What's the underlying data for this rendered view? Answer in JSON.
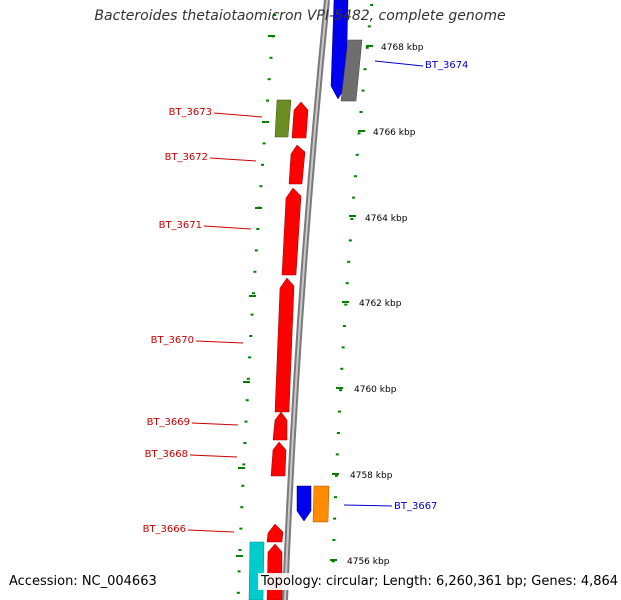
{
  "title": "Bacteroides thetaiotaomicron VPI-5482, complete genome",
  "footer": {
    "accession": "Accession: NC_004663",
    "topology": "Topology: circular; Length: 6,260,361 bp; Genes: 4,864"
  },
  "colors": {
    "red": "#ff0000",
    "blue": "#0000ee",
    "olive": "#6b8e23",
    "gray": "#6e6e6e",
    "orange": "#ff8c00",
    "cyan": "#00cccc",
    "tick": "#008000",
    "label_red": "#cc0000",
    "label_blue": "#0000cc"
  },
  "axis_labels": [
    "4768 kbp",
    "4766 kbp",
    "4764 kbp",
    "4762 kbp",
    "4760 kbp",
    "4758 kbp",
    "4756 kbp"
  ],
  "gene_labels": [
    {
      "name": "BT_3674",
      "color": "blue"
    },
    {
      "name": "BT_3673",
      "color": "red"
    },
    {
      "name": "BT_3672",
      "color": "red"
    },
    {
      "name": "BT_3671",
      "color": "red"
    },
    {
      "name": "BT_3670",
      "color": "red"
    },
    {
      "name": "BT_3669",
      "color": "red"
    },
    {
      "name": "BT_3668",
      "color": "red"
    },
    {
      "name": "BT_3667",
      "color": "blue"
    },
    {
      "name": "BT_3666",
      "color": "red"
    }
  ]
}
